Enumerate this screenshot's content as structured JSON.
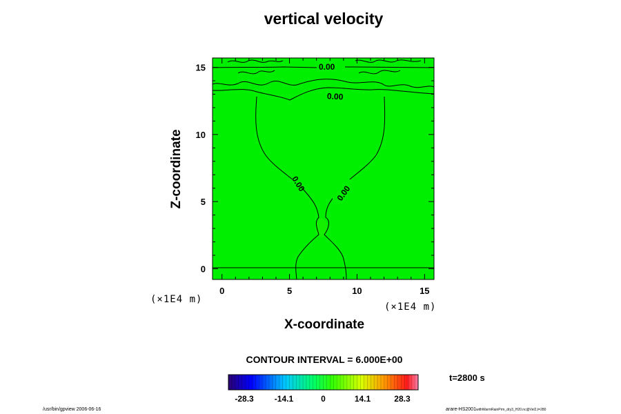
{
  "chart_data": {
    "type": "contour",
    "title": "vertical velocity",
    "xlabel": "X-coordinate",
    "ylabel": "Z-coordinate",
    "x_unit": "(×1E4 m)",
    "x_unit_right": "(×1E4 m)",
    "xlim": [
      -0.7,
      15.7
    ],
    "ylim": [
      -0.8,
      15.7
    ],
    "x_ticks": [
      0,
      5,
      10,
      15
    ],
    "y_ticks": [
      0,
      5,
      10,
      15
    ],
    "contour_labels": [
      "0.00",
      "0.00",
      "0.00",
      "0.00"
    ],
    "contour_interval": "CONTOUR INTERVAL = 6.000E+00",
    "colorbar": {
      "ticks": [
        "-28.3",
        "-14.1",
        "0",
        "14.1",
        "28.3"
      ],
      "range": [
        -34,
        34
      ]
    },
    "time": "t=2800 s",
    "field_level": "near zero everywhere (green)",
    "colors": {
      "background_field": "#00ee00",
      "contour": "#000000"
    }
  },
  "footer": {
    "left": "/usr/bin/gpview 2006-06-16",
    "right_main": "arare-HS2001",
    "right_sub": "withWarmRainPrm_dry3_H20.nc@Vel2,t=280"
  }
}
